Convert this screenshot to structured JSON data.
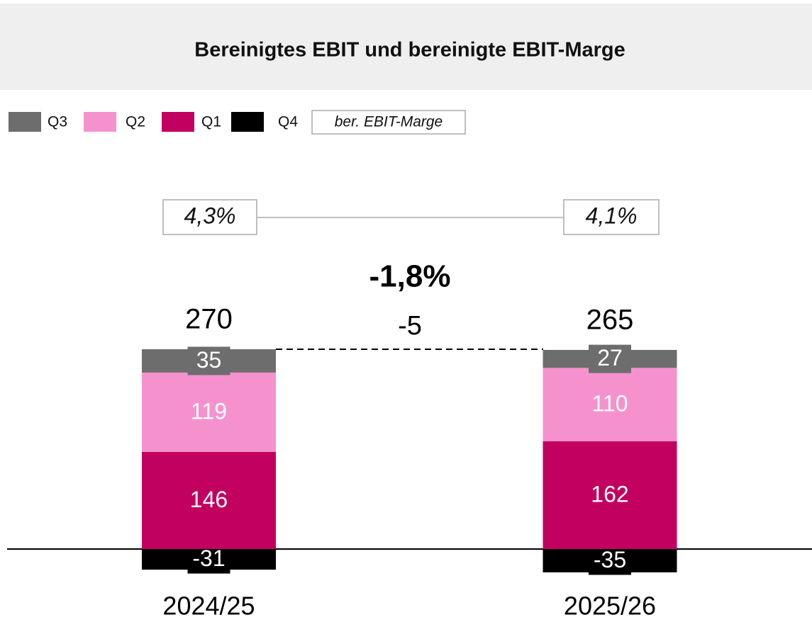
{
  "chart_data": {
    "type": "stacked_bar",
    "title": "Bereinigtes EBIT und bereinigte EBIT-Marge",
    "categories": [
      "2024/25",
      "2025/26"
    ],
    "series": [
      {
        "name": "Q3",
        "color": "#6d6d6d",
        "values": [
          35,
          27
        ]
      },
      {
        "name": "Q2",
        "color": "#f592ce",
        "values": [
          119,
          110
        ]
      },
      {
        "name": "Q1",
        "color": "#c2005f",
        "values": [
          146,
          162
        ]
      },
      {
        "name": "Q4",
        "color": "#000000",
        "values": [
          -31,
          -35
        ]
      }
    ],
    "totals": [
      270,
      265
    ],
    "margin": {
      "name": "ber. EBIT-Marge",
      "values": [
        4.3,
        4.1
      ],
      "value_labels": [
        "4,3%",
        "4,1%"
      ]
    },
    "change_percent": "-1,8%",
    "change_absolute": "-5"
  }
}
